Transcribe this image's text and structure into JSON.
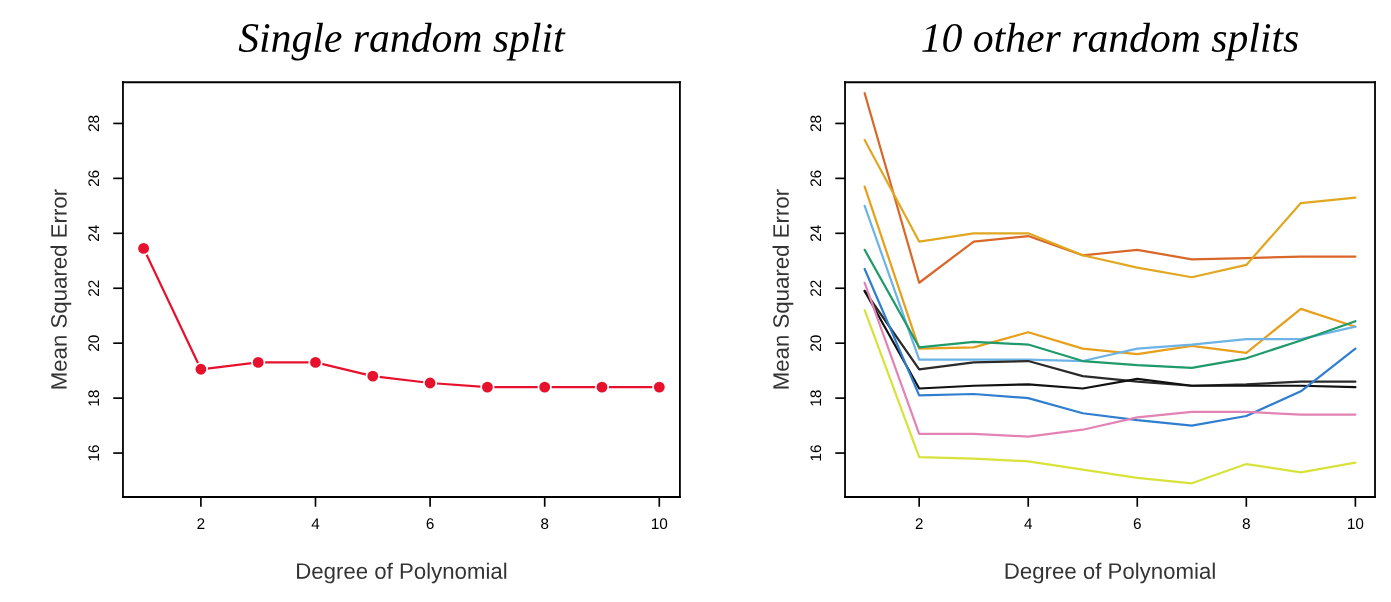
{
  "chart_data": [
    {
      "type": "line",
      "title": "Single random split",
      "xlabel": "Degree of Polynomial",
      "ylabel": "Mean Squared Error",
      "x": [
        1,
        2,
        3,
        4,
        5,
        6,
        7,
        8,
        9,
        10
      ],
      "series": [
        {
          "color": "#e8112d",
          "values": [
            23.45,
            19.05,
            19.3,
            19.3,
            18.8,
            18.55,
            18.4,
            18.4,
            18.4,
            18.4
          ]
        }
      ],
      "marker": "circle",
      "xlim": [
        0.64,
        10.36
      ],
      "ylim": [
        14.4,
        29.5
      ],
      "xticks": [
        2,
        4,
        6,
        8,
        10
      ],
      "yticks": [
        16,
        18,
        20,
        22,
        24,
        26,
        28
      ],
      "grid": false,
      "legend": false
    },
    {
      "type": "line",
      "title": "10 other random splits",
      "xlabel": "Degree of Polynomial",
      "ylabel": "Mean Squared Error",
      "x": [
        1,
        2,
        3,
        4,
        5,
        6,
        7,
        8,
        9,
        10
      ],
      "series": [
        {
          "color": "#d9672a",
          "values": [
            29.1,
            22.2,
            23.7,
            23.9,
            23.2,
            23.4,
            23.05,
            23.1,
            23.15,
            23.15
          ]
        },
        {
          "color": "#e0a820",
          "values": [
            27.4,
            23.7,
            24.0,
            24.0,
            23.2,
            22.75,
            22.4,
            22.85,
            25.1,
            25.3
          ]
        },
        {
          "color": "#e89f1c",
          "values": [
            25.7,
            19.8,
            19.85,
            20.4,
            19.8,
            19.6,
            19.9,
            19.65,
            21.25,
            20.6
          ]
        },
        {
          "color": "#6eb3e6",
          "values": [
            25.0,
            19.4,
            19.4,
            19.4,
            19.35,
            19.8,
            19.95,
            20.15,
            20.15,
            20.6
          ]
        },
        {
          "color": "#1f9a6a",
          "values": [
            23.4,
            19.85,
            20.05,
            19.95,
            19.35,
            19.2,
            19.1,
            19.45,
            20.1,
            20.8
          ]
        },
        {
          "color": "#2a2a2a",
          "values": [
            21.9,
            19.05,
            19.3,
            19.35,
            18.8,
            18.6,
            18.45,
            18.5,
            18.6,
            18.6
          ]
        },
        {
          "color": "#111111",
          "values": [
            21.9,
            18.35,
            18.45,
            18.5,
            18.35,
            18.7,
            18.45,
            18.45,
            18.45,
            18.4
          ]
        },
        {
          "color": "#2f7ed0",
          "values": [
            22.7,
            18.1,
            18.15,
            18.0,
            17.45,
            17.2,
            17.0,
            17.35,
            18.25,
            19.8
          ]
        },
        {
          "color": "#e383b4",
          "values": [
            22.2,
            16.7,
            16.7,
            16.6,
            16.85,
            17.3,
            17.5,
            17.5,
            17.4,
            17.4
          ]
        },
        {
          "color": "#d7e33a",
          "values": [
            21.2,
            15.85,
            15.8,
            15.7,
            15.4,
            15.1,
            14.9,
            15.6,
            15.3,
            15.65
          ]
        }
      ],
      "marker": "none",
      "xlim": [
        0.64,
        10.36
      ],
      "ylim": [
        14.4,
        29.5
      ],
      "xticks": [
        2,
        4,
        6,
        8,
        10
      ],
      "yticks": [
        16,
        18,
        20,
        22,
        24,
        26,
        28
      ],
      "grid": false,
      "legend": false
    }
  ]
}
